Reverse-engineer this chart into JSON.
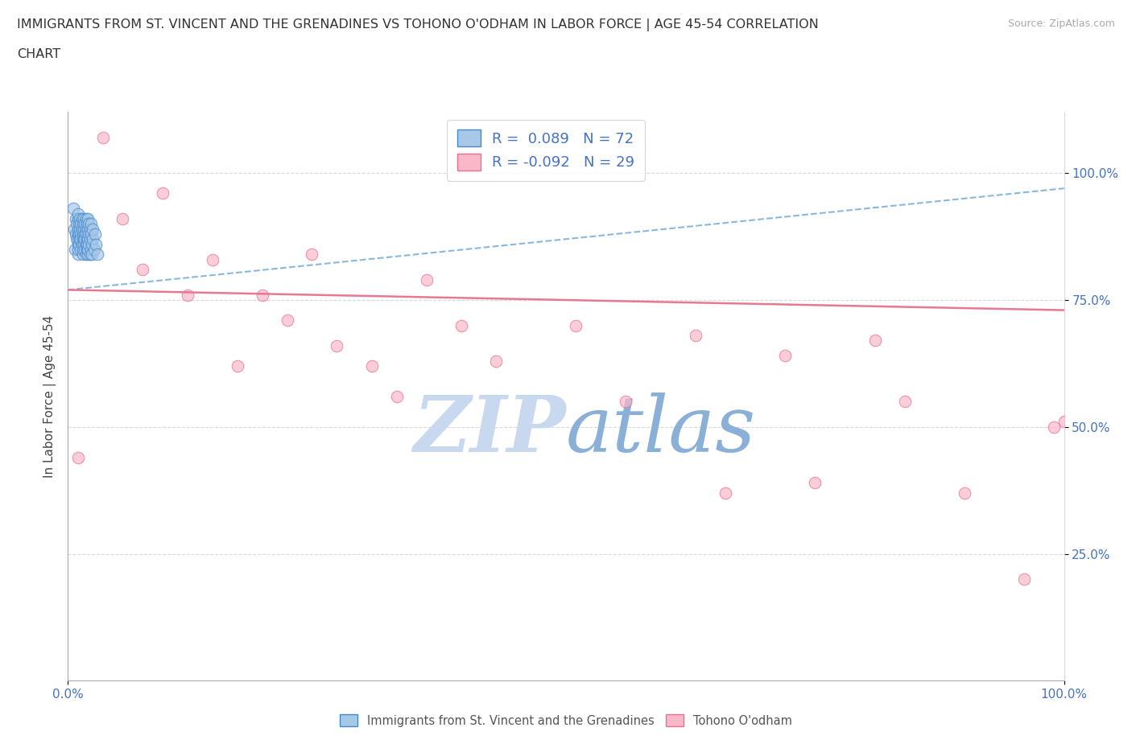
{
  "title_line1": "IMMIGRANTS FROM ST. VINCENT AND THE GRENADINES VS TOHONO O'ODHAM IN LABOR FORCE | AGE 45-54 CORRELATION",
  "title_line2": "CHART",
  "source_text": "Source: ZipAtlas.com",
  "ylabel": "In Labor Force | Age 45-54",
  "x_min": 0.0,
  "x_max": 1.0,
  "y_min": 0.0,
  "y_max": 1.12,
  "x_ticks": [
    0.0,
    1.0
  ],
  "x_tick_labels": [
    "0.0%",
    "100.0%"
  ],
  "y_ticks": [
    0.25,
    0.5,
    0.75,
    1.0
  ],
  "y_tick_labels": [
    "25.0%",
    "50.0%",
    "75.0%",
    "100.0%"
  ],
  "legend_label1": "Immigrants from St. Vincent and the Grenadines",
  "legend_label2": "Tohono O'odham",
  "R1": "0.089",
  "N1": "72",
  "R2": "-0.092",
  "N2": "29",
  "blue_face": "#a8c8e8",
  "blue_edge": "#4488cc",
  "pink_face": "#f8b8c8",
  "pink_edge": "#e87090",
  "blue_line_color": "#88b8e0",
  "pink_line_color": "#e87890",
  "label_blue": "#4472c4",
  "grid_color": "#d8d8d8",
  "watermark_ZIP": "#c8d8ee",
  "watermark_atlas": "#8ab0d8",
  "blue_x": [
    0.005,
    0.006,
    0.007,
    0.008,
    0.008,
    0.009,
    0.009,
    0.01,
    0.01,
    0.01,
    0.01,
    0.01,
    0.01,
    0.01,
    0.01,
    0.011,
    0.011,
    0.011,
    0.012,
    0.012,
    0.012,
    0.013,
    0.013,
    0.013,
    0.013,
    0.014,
    0.014,
    0.014,
    0.015,
    0.015,
    0.015,
    0.015,
    0.015,
    0.016,
    0.016,
    0.016,
    0.016,
    0.017,
    0.017,
    0.017,
    0.017,
    0.018,
    0.018,
    0.018,
    0.018,
    0.018,
    0.019,
    0.019,
    0.019,
    0.019,
    0.02,
    0.02,
    0.02,
    0.02,
    0.02,
    0.021,
    0.021,
    0.021,
    0.022,
    0.022,
    0.022,
    0.023,
    0.023,
    0.023,
    0.024,
    0.024,
    0.025,
    0.025,
    0.026,
    0.027,
    0.028,
    0.03
  ],
  "blue_y": [
    0.93,
    0.89,
    0.85,
    0.91,
    0.88,
    0.87,
    0.9,
    0.86,
    0.88,
    0.91,
    0.84,
    0.89,
    0.87,
    0.92,
    0.85,
    0.88,
    0.9,
    0.86,
    0.89,
    0.87,
    0.91,
    0.85,
    0.88,
    0.9,
    0.87,
    0.86,
    0.89,
    0.91,
    0.84,
    0.87,
    0.9,
    0.88,
    0.85,
    0.87,
    0.89,
    0.91,
    0.86,
    0.85,
    0.88,
    0.9,
    0.87,
    0.84,
    0.86,
    0.89,
    0.91,
    0.88,
    0.85,
    0.87,
    0.9,
    0.86,
    0.84,
    0.87,
    0.89,
    0.91,
    0.85,
    0.86,
    0.88,
    0.9,
    0.84,
    0.87,
    0.89,
    0.85,
    0.88,
    0.9,
    0.86,
    0.84,
    0.87,
    0.89,
    0.85,
    0.88,
    0.86,
    0.84
  ],
  "pink_x": [
    0.01,
    0.035,
    0.055,
    0.075,
    0.095,
    0.12,
    0.145,
    0.17,
    0.195,
    0.22,
    0.245,
    0.27,
    0.305,
    0.33,
    0.36,
    0.395,
    0.43,
    0.51,
    0.56,
    0.63,
    0.66,
    0.72,
    0.75,
    0.81,
    0.84,
    0.9,
    0.96,
    0.99,
    1.0
  ],
  "pink_y": [
    0.44,
    1.07,
    0.91,
    0.81,
    0.96,
    0.76,
    0.83,
    0.62,
    0.76,
    0.71,
    0.84,
    0.66,
    0.62,
    0.56,
    0.79,
    0.7,
    0.63,
    0.7,
    0.55,
    0.68,
    0.37,
    0.64,
    0.39,
    0.67,
    0.55,
    0.37,
    0.2,
    0.5,
    0.51
  ],
  "blue_trendline_x": [
    0.0,
    1.0
  ],
  "blue_trendline_y": [
    0.77,
    0.97
  ],
  "pink_trendline_x": [
    0.0,
    1.0
  ],
  "pink_trendline_y": [
    0.77,
    0.73
  ]
}
